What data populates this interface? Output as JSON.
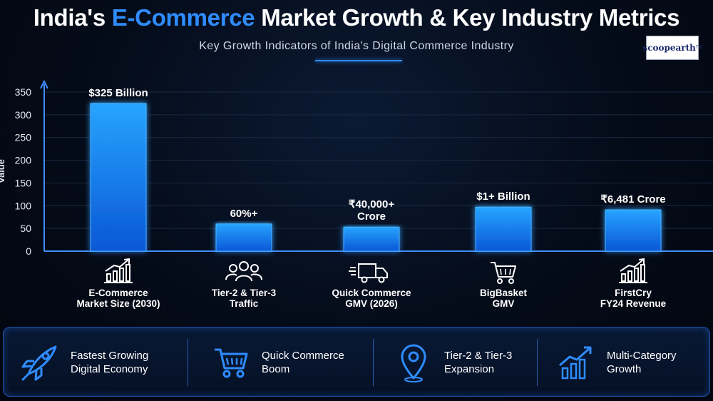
{
  "header": {
    "title_part1": "India's ",
    "title_accent": "E-Commerce",
    "title_part2": " Market Growth & Key Industry Metrics",
    "subtitle": "Key Growth Indicators of India's Digital Commerce Industry",
    "logo_text": "scoopearth",
    "logo_tm": "TM"
  },
  "colors": {
    "accent": "#2f8cff",
    "bar_top": "#27a4ff",
    "bar_bottom": "#0a57d6",
    "axis": "#3f8fff"
  },
  "chart_data": {
    "type": "bar",
    "categories": [
      [
        "E-Commerce",
        "Market Size (2030)"
      ],
      [
        "Tier-2 & Tier-3",
        "Traffic"
      ],
      [
        "Quick Commerce",
        "GMV (2026)"
      ],
      [
        "BigBasket",
        "GMV"
      ],
      [
        "FirstCry",
        "FY24 Revenue"
      ]
    ],
    "values": [
      325,
      60,
      53,
      97,
      91
    ],
    "data_labels": [
      [
        "$325 Billion"
      ],
      [
        "60%+"
      ],
      [
        "₹40,000+",
        "Crore"
      ],
      [
        "$1+ Billion"
      ],
      [
        "₹6,481 Crore"
      ]
    ],
    "category_icons": [
      "growth-chart-icon",
      "users-group-icon",
      "delivery-truck-icon",
      "shopping-cart-icon",
      "growth-chart-icon"
    ],
    "ylabel": "Value",
    "ylim": [
      0,
      350
    ],
    "yticks": [
      0,
      50,
      100,
      150,
      200,
      250,
      300,
      350
    ],
    "grid": true
  },
  "features": [
    {
      "line1": "Fastest Growing",
      "line2": "Digital Economy",
      "icon": "rocket-icon"
    },
    {
      "line1": "Quick Commerce",
      "line2": "Boom",
      "icon": "shopping-cart-icon"
    },
    {
      "line1": "Tier-2 & Tier-3",
      "line2": "Expansion",
      "icon": "location-pin-icon"
    },
    {
      "line1": "Multi-Category",
      "line2": "Growth",
      "icon": "growth-chart-icon"
    }
  ]
}
